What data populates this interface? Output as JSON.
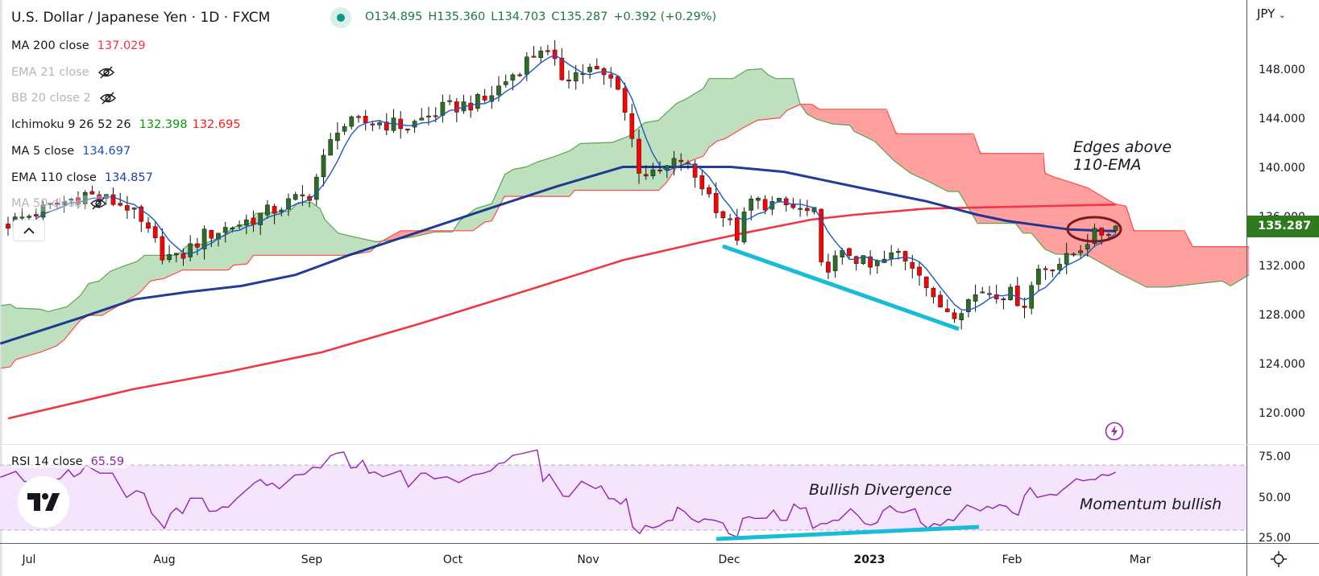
{
  "header": {
    "title": "U.S. Dollar / Japanese Yen · 1D · FXCM",
    "ohlc": {
      "o": "O134.895",
      "h": "H135.360",
      "l": "L134.703",
      "c": "C135.287",
      "change": "+0.392 (+0.29%)"
    }
  },
  "indicators": [
    {
      "label": "MA 200 close",
      "value": "137.029",
      "color": "#f23645"
    },
    {
      "label": "EMA 21 close",
      "hidden": true
    },
    {
      "label": "BB 20 close 2",
      "hidden": true
    },
    {
      "label": "Ichimoku 9 26 52 26",
      "value": "132.398",
      "value2": "132.695",
      "color": "#089a0a",
      "color2": "#ff1a1a"
    },
    {
      "label": "MA 5 close",
      "value": "134.697",
      "color": "#1f4fc4"
    },
    {
      "label": "EMA 110 close",
      "value": "134.857",
      "color": "#1f3fa8"
    },
    {
      "label": "MA 50 close",
      "hidden": true
    }
  ],
  "rsi_legend": {
    "label": "RSI 14 close",
    "value": "65.59"
  },
  "price_axis": {
    "currency": "JPY",
    "ticks": [
      {
        "v": 148,
        "label": "148.000"
      },
      {
        "v": 144,
        "label": "144.000"
      },
      {
        "v": 140,
        "label": "140.000"
      },
      {
        "v": 136,
        "label": "136.000"
      },
      {
        "v": 132,
        "label": "132.000"
      },
      {
        "v": 128,
        "label": "128.000"
      },
      {
        "v": 124,
        "label": "124.000"
      },
      {
        "v": 120,
        "label": "120.000"
      }
    ],
    "last_price": "135.287"
  },
  "rsi_axis": {
    "ticks": [
      {
        "v": 75,
        "label": "75.00"
      },
      {
        "v": 50,
        "label": "50.00"
      },
      {
        "v": 25,
        "label": "25.00"
      }
    ]
  },
  "time_axis": {
    "labels": [
      "Jul",
      "Aug",
      "Sep",
      "Oct",
      "Nov",
      "Dec",
      "2023",
      "Feb",
      "Mar"
    ]
  },
  "annotations": {
    "edges_line1": "Edges above",
    "edges_line2": "110-EMA",
    "bullish_divergence": "Bullish Divergence",
    "momentum": "Momentum bullish"
  },
  "colors": {
    "up": "#2c6e24",
    "down": "#ff0000",
    "ma200": "#f23645",
    "ema110": "#0f2b8f",
    "ma5": "#2156c8",
    "cloud_green_fill": "#bfe0be",
    "cloud_green_line": "#56a84c",
    "cloud_red_fill": "#ff9f9f",
    "cloud_red_line": "#ff4a4a",
    "rsi": "#9323b4",
    "rsi_band": "#f4e5fd",
    "divergence": "#17bcd6",
    "accent": "#2f7a1f"
  },
  "chart_data": {
    "type": "candlestick",
    "title": "U.S. Dollar / Japanese Yen · 1D · FXCM",
    "ylim": [
      117,
      152
    ],
    "rsi_ylim": [
      20,
      85
    ],
    "bars": 159,
    "last_bar": {
      "o": 134.895,
      "h": 135.36,
      "l": 134.703,
      "c": 135.287
    },
    "close_waypoints": [
      [
        0,
        135.5
      ],
      [
        11,
        137.9
      ],
      [
        17,
        136.9
      ],
      [
        22,
        133.1
      ],
      [
        24,
        132.5
      ],
      [
        28,
        134.5
      ],
      [
        35,
        135.9
      ],
      [
        43,
        137.9
      ],
      [
        47,
        143.4
      ],
      [
        52,
        143.8
      ],
      [
        57,
        143.4
      ],
      [
        62,
        144.8
      ],
      [
        68,
        145.5
      ],
      [
        73,
        148.2
      ],
      [
        76,
        149.9
      ],
      [
        79,
        147.5
      ],
      [
        83,
        148
      ],
      [
        87,
        146.9
      ],
      [
        90,
        140
      ],
      [
        92,
        139.3
      ],
      [
        96,
        140.7
      ],
      [
        99,
        138.6
      ],
      [
        104,
        134.5
      ],
      [
        106,
        137.3
      ],
      [
        111,
        136.9
      ],
      [
        115,
        136.2
      ],
      [
        116,
        131.8
      ],
      [
        120,
        133.1
      ],
      [
        123,
        131.8
      ],
      [
        127,
        133.1
      ],
      [
        130,
        131.8
      ],
      [
        132,
        129
      ],
      [
        135,
        128.35
      ],
      [
        139,
        130.1
      ],
      [
        143,
        129.7
      ],
      [
        145,
        129
      ],
      [
        147,
        131.8
      ],
      [
        151,
        132.5
      ],
      [
        154,
        134.2
      ],
      [
        158,
        135.287
      ]
    ],
    "ma200": [
      [
        0,
        119.6
      ],
      [
        18,
        122
      ],
      [
        31.4,
        123.4
      ],
      [
        44.8,
        125
      ],
      [
        58.6,
        127.3
      ],
      [
        74.4,
        130.1
      ],
      [
        87.7,
        132.5
      ],
      [
        99.2,
        134
      ],
      [
        104.9,
        134.7
      ],
      [
        114.6,
        135.8
      ],
      [
        120.7,
        136.2
      ],
      [
        131,
        136.7
      ],
      [
        158,
        137.029
      ]
    ],
    "ema110": [
      [
        -1.1,
        125.7
      ],
      [
        10.3,
        127.8
      ],
      [
        18,
        129.3
      ],
      [
        25.6,
        129.9
      ],
      [
        33.3,
        130.4
      ],
      [
        41,
        131.3
      ],
      [
        48.6,
        132.9
      ],
      [
        58.6,
        134.8
      ],
      [
        68.6,
        136.7
      ],
      [
        78.2,
        138.5
      ],
      [
        87.7,
        140.1
      ],
      [
        97.4,
        140.1
      ],
      [
        103.1,
        140.1
      ],
      [
        110.7,
        139.7
      ],
      [
        120.7,
        138.5
      ],
      [
        131,
        137.3
      ],
      [
        138.3,
        136.2
      ],
      [
        142.5,
        135.7
      ],
      [
        151.4,
        135
      ],
      [
        158,
        134.857
      ]
    ],
    "ichimoku_span_a": [
      [
        -1,
        128.8
      ],
      [
        0.3,
        128.9
      ],
      [
        1.1,
        128.6
      ],
      [
        4.6,
        128.5
      ],
      [
        5.7,
        128.3
      ],
      [
        8.4,
        128.7
      ],
      [
        10.3,
        129.6
      ],
      [
        11.5,
        130.6
      ],
      [
        13,
        130.8
      ],
      [
        14.6,
        131.6
      ],
      [
        16.9,
        132.1
      ],
      [
        18.4,
        132.4
      ],
      [
        19.5,
        132.9
      ],
      [
        24.1,
        132.9
      ],
      [
        25.6,
        133.7
      ],
      [
        27.9,
        133.8
      ],
      [
        30.7,
        134.5
      ],
      [
        32.2,
        135.2
      ],
      [
        34.5,
        135.5
      ],
      [
        35.3,
        136.3
      ],
      [
        40.2,
        136.5
      ],
      [
        41.4,
        137.2
      ],
      [
        43.3,
        137.2
      ],
      [
        44.5,
        136.7
      ],
      [
        45.2,
        135.8
      ],
      [
        47.1,
        134.7
      ],
      [
        48.6,
        134.5
      ],
      [
        52.5,
        134
      ],
      [
        55.5,
        134.2
      ],
      [
        57.8,
        134.4
      ],
      [
        60.9,
        134.8
      ],
      [
        63.4,
        134.8
      ],
      [
        64.4,
        135.7
      ],
      [
        66.7,
        136.7
      ],
      [
        69,
        137.1
      ],
      [
        70.9,
        139.5
      ],
      [
        72.1,
        139.9
      ],
      [
        73.9,
        140.1
      ],
      [
        75.5,
        140.5
      ],
      [
        78.2,
        141
      ],
      [
        80.1,
        141.4
      ],
      [
        81.6,
        142
      ],
      [
        86.2,
        142.1
      ],
      [
        88.5,
        142.6
      ],
      [
        90.8,
        143.7
      ],
      [
        92.8,
        143.9
      ],
      [
        93.9,
        144.5
      ],
      [
        95.4,
        145.3
      ],
      [
        96.6,
        145.6
      ],
      [
        99.2,
        146.5
      ],
      [
        100,
        147.3
      ],
      [
        103.4,
        147.3
      ],
      [
        105.4,
        148
      ],
      [
        107.5,
        148.1
      ],
      [
        108.4,
        147.6
      ],
      [
        109.5,
        147.3
      ],
      [
        112,
        147.3
      ],
      [
        113,
        145.2
      ],
      [
        114,
        144.4
      ],
      [
        115.3,
        144
      ],
      [
        117.6,
        143.6
      ],
      [
        120.1,
        143.5
      ],
      [
        120.7,
        143
      ],
      [
        123.6,
        142.2
      ],
      [
        126.4,
        140.6
      ],
      [
        128.7,
        139.6
      ],
      [
        131,
        139
      ],
      [
        134.1,
        138.1
      ],
      [
        135.6,
        138.1
      ],
      [
        138.3,
        135.5
      ],
      [
        143.7,
        135.5
      ],
      [
        144.8,
        134.7
      ],
      [
        146,
        134.7
      ],
      [
        147.9,
        133.4
      ],
      [
        149.4,
        133
      ],
      [
        154,
        132.9
      ],
      [
        158.6,
        131.4
      ],
      [
        162.4,
        130.3
      ],
      [
        165.5,
        130.3
      ],
      [
        167,
        130.4
      ],
      [
        173.2,
        130.8
      ],
      [
        174.4,
        130.4
      ],
      [
        177,
        131.3
      ]
    ],
    "ichimoku_span_b": [
      [
        -1,
        123.7
      ],
      [
        0.3,
        123.8
      ],
      [
        1.1,
        124.4
      ],
      [
        4.6,
        125
      ],
      [
        6.9,
        125.5
      ],
      [
        8,
        126
      ],
      [
        10.3,
        127.6
      ],
      [
        11.5,
        128
      ],
      [
        13.4,
        128
      ],
      [
        18.7,
        129.8
      ],
      [
        20.3,
        130.8
      ],
      [
        22.2,
        131
      ],
      [
        24.9,
        131.7
      ],
      [
        31.4,
        131.7
      ],
      [
        32.2,
        132.1
      ],
      [
        34.1,
        132.2
      ],
      [
        35,
        132.9
      ],
      [
        48.6,
        132.9
      ],
      [
        51.7,
        133.2
      ],
      [
        53.2,
        134
      ],
      [
        56,
        134.9
      ],
      [
        66.3,
        134.9
      ],
      [
        68,
        135.6
      ],
      [
        69,
        135.7
      ],
      [
        70.8,
        137.7
      ],
      [
        80.1,
        137.7
      ],
      [
        80.8,
        138.2
      ],
      [
        92.8,
        138.2
      ],
      [
        93.9,
        138.8
      ],
      [
        95.4,
        140.1
      ],
      [
        97.4,
        140.6
      ],
      [
        99.2,
        141
      ],
      [
        100,
        141.7
      ],
      [
        101.1,
        142.2
      ],
      [
        102.3,
        142.4
      ],
      [
        104.9,
        143.3
      ],
      [
        106.9,
        143.9
      ],
      [
        110.1,
        144.1
      ],
      [
        111.1,
        144.7
      ],
      [
        113,
        145.2
      ],
      [
        114.7,
        145.2
      ],
      [
        115.7,
        144.8
      ],
      [
        125.3,
        144.8
      ],
      [
        126.7,
        142.8
      ],
      [
        137.7,
        142.8
      ],
      [
        138.7,
        141.2
      ],
      [
        147.7,
        141.2
      ],
      [
        147.9,
        139.6
      ],
      [
        149.1,
        139.3
      ],
      [
        154,
        138.4
      ],
      [
        157.8,
        137.1
      ],
      [
        159.5,
        136.9
      ],
      [
        160.6,
        134.9
      ],
      [
        167.8,
        134.9
      ],
      [
        169,
        133.6
      ],
      [
        177,
        133.6
      ]
    ],
    "rsi": [
      [
        -1.1,
        62.5
      ],
      [
        1.1,
        66.1
      ],
      [
        2.3,
        60
      ],
      [
        4,
        59.2
      ],
      [
        7.4,
        61.6
      ],
      [
        8.6,
        67.1
      ],
      [
        9.4,
        62.8
      ],
      [
        10.3,
        65
      ],
      [
        11.1,
        69.9
      ],
      [
        13.1,
        65
      ],
      [
        14.9,
        65
      ],
      [
        16.9,
        50.1
      ],
      [
        18.3,
        54.2
      ],
      [
        19.4,
        52.6
      ],
      [
        20.5,
        40.2
      ],
      [
        21.4,
        36
      ],
      [
        22.3,
        31.1
      ],
      [
        23.2,
        40.2
      ],
      [
        24,
        43.5
      ],
      [
        24.9,
        40.2
      ],
      [
        26,
        49.6
      ],
      [
        27.7,
        49.6
      ],
      [
        28.7,
        41.5
      ],
      [
        29.7,
        41.8
      ],
      [
        30.6,
        44.3
      ],
      [
        31.4,
        44
      ],
      [
        32.6,
        49.3
      ],
      [
        35.2,
        59.2
      ],
      [
        36,
        61.1
      ],
      [
        36.9,
        57.5
      ],
      [
        37.7,
        58.9
      ],
      [
        38.7,
        55.4
      ],
      [
        40.9,
        63.8
      ],
      [
        42.3,
        64.4
      ],
      [
        43.5,
        68.7
      ],
      [
        44.6,
        68.2
      ],
      [
        46,
        75.7
      ],
      [
        46.9,
        77.3
      ],
      [
        47.9,
        78
      ],
      [
        48.9,
        68.2
      ],
      [
        49.7,
        68.7
      ],
      [
        50.6,
        72.9
      ],
      [
        51.5,
        65
      ],
      [
        52.3,
        65.8
      ],
      [
        53.5,
        62.8
      ],
      [
        56,
        66.6
      ],
      [
        57.1,
        56.5
      ],
      [
        58.9,
        65
      ],
      [
        59.6,
        65
      ],
      [
        60.8,
        61.6
      ],
      [
        62.6,
        62.8
      ],
      [
        64.3,
        59.2
      ],
      [
        66.3,
        63.8
      ],
      [
        67.8,
        65
      ],
      [
        68.9,
        66.6
      ],
      [
        70,
        71
      ],
      [
        70.8,
        71.5
      ],
      [
        72,
        76
      ],
      [
        73.2,
        77
      ],
      [
        75.5,
        79.3
      ],
      [
        76.3,
        60
      ],
      [
        77.2,
        64.4
      ],
      [
        79.2,
        50.9
      ],
      [
        80,
        50.6
      ],
      [
        81.8,
        60
      ],
      [
        83.8,
        55.5
      ],
      [
        84.6,
        57.2
      ],
      [
        85.7,
        49.3
      ],
      [
        86.4,
        49.3
      ],
      [
        87.4,
        46
      ],
      [
        88.2,
        49.3
      ],
      [
        89.1,
        31.9
      ],
      [
        90.1,
        27.8
      ],
      [
        90.9,
        32.8
      ],
      [
        92,
        31.4
      ],
      [
        92.8,
        32.4
      ],
      [
        94,
        35.7
      ],
      [
        94.8,
        36
      ],
      [
        95.5,
        44
      ],
      [
        96.5,
        41.4
      ],
      [
        97.5,
        36.9
      ],
      [
        98.5,
        34.7
      ],
      [
        99.3,
        36.9
      ],
      [
        100.8,
        36
      ],
      [
        102,
        34.3
      ],
      [
        102.8,
        27.8
      ],
      [
        104,
        25.8
      ],
      [
        104.8,
        37.2
      ],
      [
        105.7,
        38.2
      ],
      [
        106.5,
        37.2
      ],
      [
        108.2,
        37.4
      ],
      [
        109.2,
        42.3
      ],
      [
        110.2,
        36
      ],
      [
        111.1,
        36
      ],
      [
        112.1,
        46
      ],
      [
        113,
        43.1
      ],
      [
        113.8,
        43.8
      ],
      [
        114.8,
        31.1
      ],
      [
        116,
        34
      ],
      [
        116.8,
        34
      ],
      [
        117.7,
        36
      ],
      [
        118.5,
        36
      ],
      [
        120.2,
        43.1
      ],
      [
        121.2,
        39.2
      ],
      [
        122.2,
        34
      ],
      [
        123.1,
        33
      ],
      [
        124,
        34.7
      ],
      [
        124.8,
        41.8
      ],
      [
        125.8,
        44.9
      ],
      [
        126.8,
        41.4
      ],
      [
        127.7,
        40.7
      ],
      [
        129.4,
        43.1
      ],
      [
        130.2,
        34.7
      ],
      [
        131.2,
        31.1
      ],
      [
        132.1,
        34
      ],
      [
        133,
        32.8
      ],
      [
        134.1,
        36.7
      ],
      [
        134.9,
        35.7
      ],
      [
        135.8,
        40.7
      ],
      [
        136.8,
        45.4
      ],
      [
        137.7,
        43.8
      ],
      [
        138.7,
        41.8
      ],
      [
        139.7,
        44.6
      ],
      [
        140.5,
        43.3
      ],
      [
        141.4,
        45.6
      ],
      [
        142.4,
        44.6
      ],
      [
        143.3,
        40.7
      ],
      [
        144.1,
        39.2
      ],
      [
        145,
        51.2
      ],
      [
        145.8,
        56.1
      ],
      [
        146.8,
        50.1
      ],
      [
        148.7,
        52
      ],
      [
        149.6,
        51.5
      ],
      [
        150.5,
        55
      ],
      [
        151.5,
        58.3
      ],
      [
        152.4,
        61.6
      ],
      [
        153.4,
        60.3
      ],
      [
        154.3,
        61.1
      ],
      [
        155.1,
        61.1
      ],
      [
        156,
        64.1
      ],
      [
        157,
        63.6
      ],
      [
        158,
        65.59
      ]
    ]
  }
}
